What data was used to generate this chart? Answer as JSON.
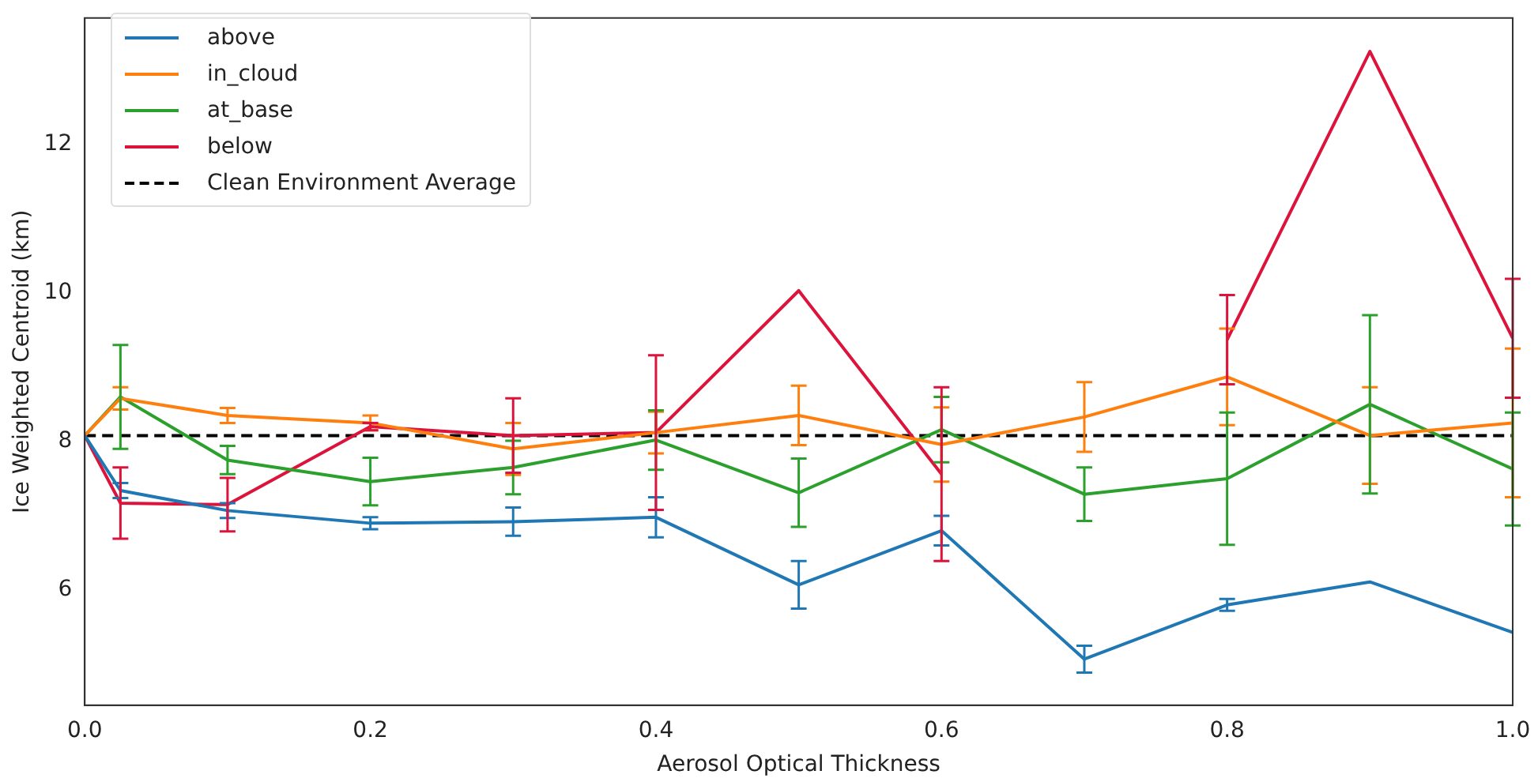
{
  "chart_data": {
    "type": "line",
    "xlabel": "Aerosol Optical Thickness",
    "ylabel": "Ice Weighted Centroid (km)",
    "x": [
      0,
      0.025,
      0.1,
      0.2,
      0.3,
      0.4,
      0.5,
      0.6,
      0.7,
      0.8,
      0.9,
      1.0
    ],
    "xlim": [
      0,
      1
    ],
    "xticks": [
      {
        "value": 0,
        "label": "0.0"
      },
      {
        "value": 0.2,
        "label": "0.2"
      },
      {
        "value": 0.4,
        "label": "0.4"
      },
      {
        "value": 0.6,
        "label": "0.6"
      },
      {
        "value": 0.8,
        "label": "0.8"
      },
      {
        "value": 1,
        "label": "1.0"
      }
    ],
    "ylim": [
      4.45,
      13.7
    ],
    "yticks": [
      6,
      8,
      10,
      12
    ],
    "grid": false,
    "legend": "top left",
    "marker": "none",
    "series": [
      {
        "name": "above",
        "color": "#1f77b4",
        "values": [
          8.08,
          7.34,
          7.07,
          6.9,
          6.92,
          6.98,
          6.07,
          6.8,
          5.07,
          5.8,
          6.11,
          5.43
        ],
        "errors": [
          null,
          0.1,
          0.1,
          0.08,
          0.19,
          0.27,
          0.32,
          0.2,
          0.18,
          0.08,
          null,
          null
        ]
      },
      {
        "name": "in_cloud",
        "color": "#ff7f0e",
        "values": [
          8.08,
          8.58,
          8.35,
          8.25,
          7.9,
          8.12,
          8.35,
          7.96,
          8.33,
          8.87,
          8.08,
          8.25
        ],
        "errors": [
          null,
          0.15,
          0.1,
          0.1,
          0.35,
          0.28,
          0.4,
          0.5,
          0.47,
          0.65,
          0.65,
          1.0
        ]
      },
      {
        "name": "at_base",
        "color": "#2ca02c",
        "values": [
          8.08,
          8.6,
          7.75,
          7.46,
          7.65,
          8.02,
          7.31,
          8.16,
          7.29,
          7.5,
          8.5,
          7.63
        ],
        "errors": [
          null,
          0.7,
          0.19,
          0.32,
          0.36,
          0.4,
          0.46,
          0.44,
          0.36,
          0.89,
          1.2,
          0.76
        ]
      },
      {
        "name": "below",
        "color": "#dc143c",
        "values": [
          8.08,
          7.17,
          7.15,
          8.2,
          8.08,
          8.12,
          10.03,
          7.56,
          null,
          9.37,
          13.25,
          9.39
        ],
        "errors": [
          null,
          0.48,
          0.36,
          0.05,
          0.5,
          1.04,
          null,
          1.17,
          null,
          0.6,
          null,
          0.8
        ]
      },
      {
        "name": "Clean Environment Average",
        "color": "#000000",
        "line_style": "dashed",
        "x": [
          0,
          1
        ],
        "values": [
          8.08,
          8.08
        ]
      }
    ]
  }
}
